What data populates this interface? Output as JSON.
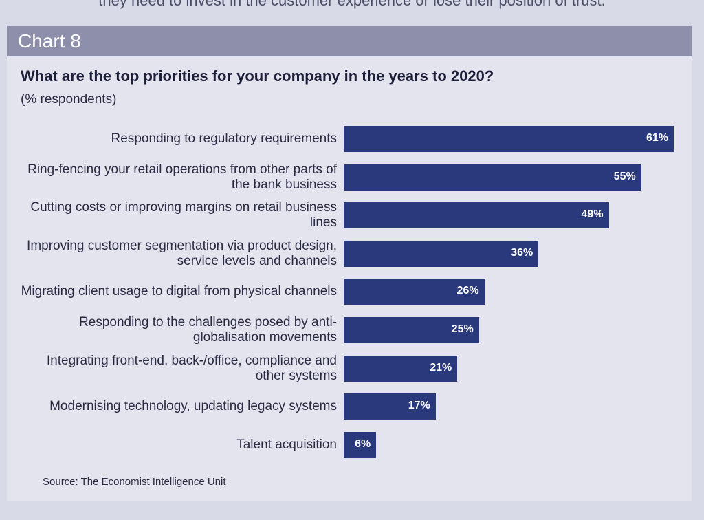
{
  "intro": "they need to invest in the customer experience or lose their position of trust.",
  "chart_data": {
    "type": "hbar",
    "chart_label": "Chart 8",
    "title": "What are the top priorities for your company in the years to 2020?",
    "subtitle": "(% respondents)",
    "categories": [
      "Responding to regulatory requirements",
      "Ring-fencing your retail operations from other parts of the bank business",
      "Cutting costs or improving margins on retail business lines",
      "Improving customer segmentation via product design, service levels and channels",
      "Migrating client usage to digital from physical channels",
      "Responding to the challenges posed by anti-globalisation movements",
      "Integrating front-end, back-/office, compliance and other systems",
      "Modernising technology, updating legacy systems",
      "Talent acquisition"
    ],
    "values": [
      61,
      55,
      49,
      36,
      26,
      25,
      21,
      17,
      6
    ],
    "value_labels": [
      "61%",
      "55%",
      "49%",
      "36%",
      "26%",
      "25%",
      "21%",
      "17%",
      "6%"
    ],
    "color": "#2a397c",
    "source": "Source: The Economist Intelligence Unit"
  }
}
